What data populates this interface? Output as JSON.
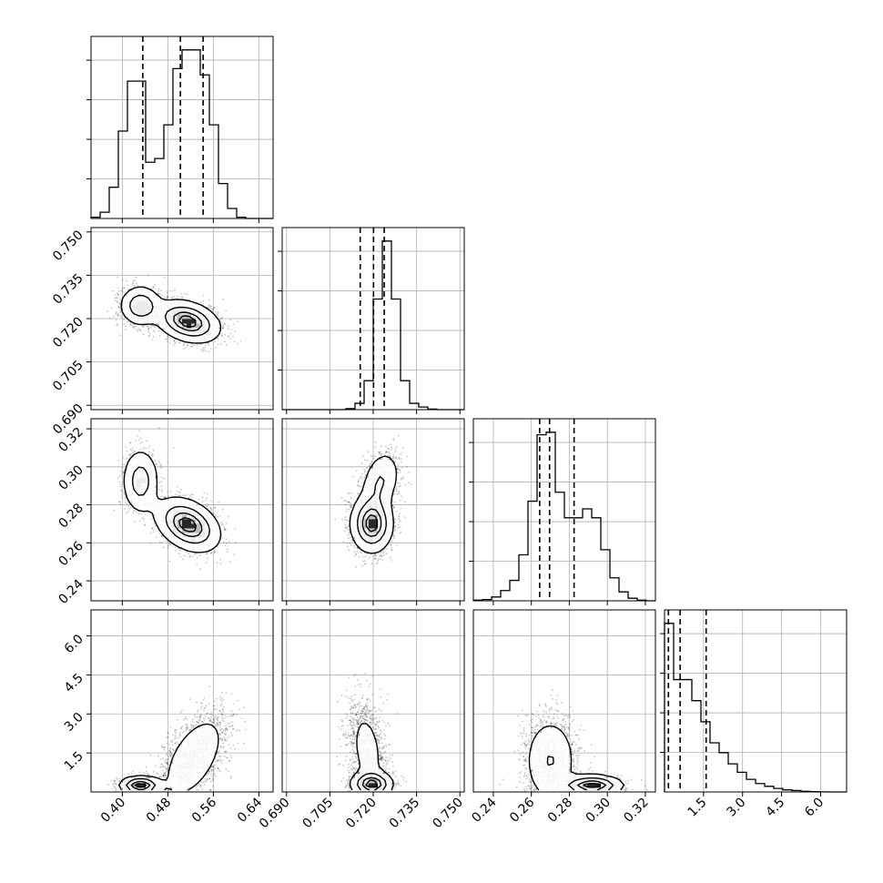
{
  "chart_data": {
    "type": "corner",
    "grid": true,
    "parameters": [
      {
        "range": [
          0.345,
          0.665
        ],
        "ticks": [
          0.4,
          0.48,
          0.56,
          0.64
        ],
        "labels": [
          "0.40",
          "0.48",
          "0.56",
          "0.64"
        ],
        "quantiles": [
          0.436,
          0.502,
          0.542
        ]
      },
      {
        "range": [
          0.6885,
          0.7515
        ],
        "ticks": [
          0.69,
          0.705,
          0.72,
          0.735,
          0.75
        ],
        "labels": [
          "0.690",
          "0.705",
          "0.720",
          "0.735",
          "0.750"
        ],
        "quantiles": [
          0.7155,
          0.7201,
          0.7238
        ]
      },
      {
        "range": [
          0.2295,
          0.3253
        ],
        "ticks": [
          0.24,
          0.26,
          0.28,
          0.3,
          0.32
        ],
        "labels": [
          "0.24",
          "0.26",
          "0.28",
          "0.30",
          "0.32"
        ],
        "quantiles": [
          0.2644,
          0.2696,
          0.2825
        ]
      },
      {
        "range": [
          0.0,
          7.0
        ],
        "ticks": [
          1.5,
          3.0,
          4.5,
          6.0
        ],
        "labels": [
          "1.5",
          "3.0",
          "4.5",
          "6.0"
        ],
        "quantiles": [
          0.15,
          0.6,
          1.6
        ]
      }
    ],
    "histograms": [
      {
        "param": 0,
        "edges_start": 0.345,
        "bin_width": 0.016,
        "values": [
          0.1,
          0.5,
          2.5,
          7.0,
          11.0,
          11.0,
          4.5,
          4.8,
          7.5,
          12.0,
          13.5,
          13.5,
          11.5,
          7.5,
          2.8,
          0.8,
          0.1,
          0.0,
          0.0,
          0.0
        ]
      },
      {
        "param": 1,
        "edges_start": 0.6885,
        "bin_width": 0.00315,
        "values": [
          0.0,
          0.0,
          0.0,
          0.0,
          0.0,
          0.0,
          0.0,
          0.02,
          0.12,
          0.55,
          2.1,
          3.2,
          2.1,
          0.55,
          0.12,
          0.05,
          0.01,
          0.0,
          0.0,
          0.0
        ]
      },
      {
        "param": 2,
        "edges_start": 0.2295,
        "bin_width": 0.00479,
        "values": [
          0.05,
          0.1,
          0.3,
          0.8,
          1.6,
          3.6,
          7.8,
          13.0,
          13.2,
          8.5,
          6.5,
          6.5,
          7.2,
          6.5,
          4.0,
          1.8,
          0.7,
          0.2,
          0.05,
          0.0
        ]
      },
      {
        "param": 3,
        "edges_start": 0.0,
        "bin_width": 0.35,
        "values": [
          12.0,
          8.0,
          8.0,
          6.5,
          5.0,
          3.5,
          2.8,
          2.0,
          1.4,
          0.9,
          0.6,
          0.4,
          0.25,
          0.15,
          0.1,
          0.05,
          0.02,
          0.01,
          0.0,
          0.0
        ]
      }
    ],
    "joint": [
      {
        "x": 0,
        "y": 1,
        "modes": [
          {
            "weight": 0.3,
            "mean": [
              0.432,
              0.7245
            ],
            "sd": [
              0.018,
              0.0034
            ],
            "rho": 0.0
          },
          {
            "weight": 0.7,
            "mean": [
              0.515,
              0.719
            ],
            "sd": [
              0.028,
              0.0036
            ],
            "rho": -0.3
          }
        ]
      },
      {
        "x": 0,
        "y": 2,
        "modes": [
          {
            "weight": 0.3,
            "mean": [
              0.432,
              0.2925
            ],
            "sd": [
              0.016,
              0.0085
            ],
            "rho": 0.0
          },
          {
            "weight": 0.7,
            "mean": [
              0.515,
              0.2695
            ],
            "sd": [
              0.028,
              0.007
            ],
            "rho": -0.35
          }
        ]
      },
      {
        "x": 1,
        "y": 2,
        "modes": [
          {
            "weight": 0.3,
            "mean": [
              0.7225,
              0.292
            ],
            "sd": [
              0.0034,
              0.0085
            ],
            "rho": 0.3
          },
          {
            "weight": 0.7,
            "mean": [
              0.7195,
              0.27
            ],
            "sd": [
              0.0036,
              0.0075
            ],
            "rho": 0.0
          }
        ]
      },
      {
        "x": 0,
        "y": 3,
        "modes": [
          {
            "weight": 0.3,
            "mean": [
              0.432,
              0.25
            ],
            "sd": [
              0.018,
              0.18
            ],
            "rho": 0.0
          },
          {
            "weight": 0.7,
            "mean": [
              0.525,
              1.3
            ],
            "sd": [
              0.03,
              0.9
            ],
            "rho": 0.55
          }
        ]
      },
      {
        "x": 1,
        "y": 3,
        "modes": [
          {
            "weight": 0.55,
            "mean": [
              0.7195,
              0.3
            ],
            "sd": [
              0.0036,
              0.25
            ],
            "rho": 0.0
          },
          {
            "weight": 0.45,
            "mean": [
              0.718,
              1.6
            ],
            "sd": [
              0.0035,
              1.0
            ],
            "rho": -0.3
          }
        ]
      },
      {
        "x": 2,
        "y": 3,
        "modes": [
          {
            "weight": 0.6,
            "mean": [
              0.27,
              1.2
            ],
            "sd": [
              0.007,
              0.85
            ],
            "rho": 0.0
          },
          {
            "weight": 0.4,
            "mean": [
              0.292,
              0.25
            ],
            "sd": [
              0.008,
              0.2
            ],
            "rho": 0.0
          }
        ]
      }
    ],
    "contour_levels": [
      0.118,
      0.393,
      0.675,
      0.864
    ]
  }
}
